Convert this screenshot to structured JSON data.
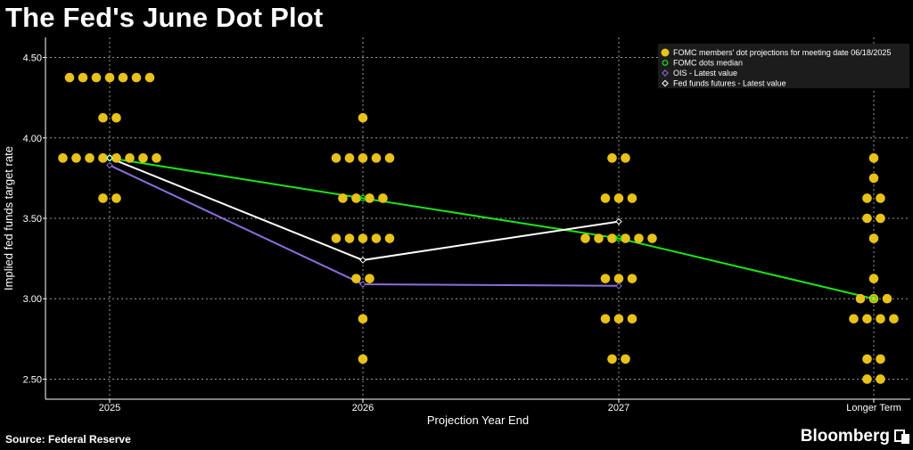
{
  "header": {
    "title": "The Fed's June Dot Plot"
  },
  "footer": {
    "source": "Source: Federal Reserve",
    "brand": "Bloomberg"
  },
  "colors": {
    "background": "#000000",
    "dots": "#e8c21a",
    "median": "#19e619",
    "ois": "#8a6fd8",
    "futures": "#ffffff",
    "grid": "#9a9a9a"
  },
  "icons": {
    "brand": "bloomberg-terminal-icon"
  },
  "chart_data": {
    "type": "scatter",
    "title": "The Fed's June Dot Plot",
    "xlabel": "Projection Year End",
    "ylabel": "Implied fed funds target rate",
    "categories": [
      "2025",
      "2026",
      "2027",
      "Longer Term"
    ],
    "ylim": [
      2.375,
      4.625
    ],
    "yticks": [
      "2.50",
      "3.00",
      "3.50",
      "4.00",
      "4.50"
    ],
    "grid": true,
    "legend_position": "top-right",
    "legend": [
      "FOMC members' dot projections for meeting date 06/18/2025",
      "FOMC dots median",
      "OIS - Latest value",
      "Fed funds futures - Latest value"
    ],
    "dots": [
      {
        "category": "2025",
        "levels": [
          {
            "y": 4.375,
            "count": 7
          },
          {
            "y": 4.125,
            "count": 2
          },
          {
            "y": 3.875,
            "count": 8
          },
          {
            "y": 3.625,
            "count": 2
          }
        ]
      },
      {
        "category": "2026",
        "levels": [
          {
            "y": 4.125,
            "count": 1
          },
          {
            "y": 3.875,
            "count": 5
          },
          {
            "y": 3.625,
            "count": 4
          },
          {
            "y": 3.375,
            "count": 5
          },
          {
            "y": 3.125,
            "count": 2
          },
          {
            "y": 2.875,
            "count": 1
          },
          {
            "y": 2.625,
            "count": 1
          }
        ]
      },
      {
        "category": "2027",
        "levels": [
          {
            "y": 3.875,
            "count": 2
          },
          {
            "y": 3.625,
            "count": 3
          },
          {
            "y": 3.375,
            "count": 6
          },
          {
            "y": 3.125,
            "count": 3
          },
          {
            "y": 2.875,
            "count": 3
          },
          {
            "y": 2.625,
            "count": 2
          }
        ]
      },
      {
        "category": "Longer Term",
        "levels": [
          {
            "y": 3.875,
            "count": 1
          },
          {
            "y": 3.75,
            "count": 1
          },
          {
            "y": 3.625,
            "count": 2
          },
          {
            "y": 3.5,
            "count": 2
          },
          {
            "y": 3.375,
            "count": 1
          },
          {
            "y": 3.125,
            "count": 1
          },
          {
            "y": 3.0,
            "count": 3
          },
          {
            "y": 2.875,
            "count": 4
          },
          {
            "y": 2.625,
            "count": 2
          },
          {
            "y": 2.5,
            "count": 2
          }
        ]
      }
    ],
    "series": [
      {
        "name": "FOMC dots median",
        "values": [
          3.875,
          3.625,
          3.375,
          3.0
        ]
      },
      {
        "name": "OIS - Latest value",
        "values": [
          3.83,
          3.09,
          3.08,
          null
        ]
      },
      {
        "name": "Fed funds futures - Latest value",
        "values": [
          3.875,
          3.24,
          3.48,
          null
        ]
      }
    ]
  }
}
